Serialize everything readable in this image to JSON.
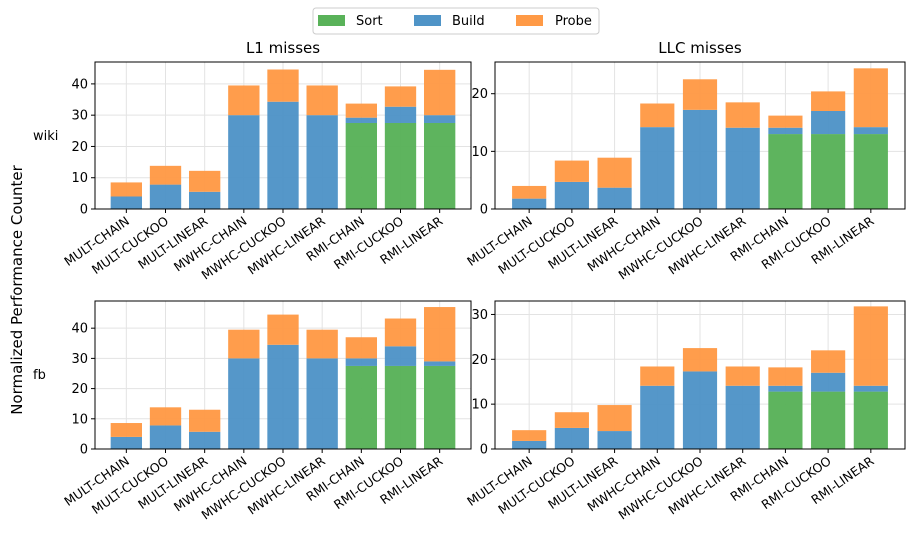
{
  "figure": {
    "ylabel": "Normalized Performance Counter",
    "legend": {
      "placement": "top-center",
      "entries": [
        {
          "name": "Sort",
          "color": "#59b259"
        },
        {
          "name": "Build",
          "color": "#4f94c7"
        },
        {
          "name": "Probe",
          "color": "#ff9a46"
        }
      ]
    }
  },
  "chart_data": [
    {
      "type": "bar",
      "stacked": true,
      "title": "L1 misses",
      "row_label": "wiki",
      "categories": [
        "MULT-CHAIN",
        "MULT-CUCKOO",
        "MULT-LINEAR",
        "MWHC-CHAIN",
        "MWHC-CUCKOO",
        "MWHC-LINEAR",
        "RMI-CHAIN",
        "RMI-CUCKOO",
        "RMI-LINEAR"
      ],
      "series": [
        {
          "name": "Sort",
          "values": [
            0,
            0,
            0,
            0,
            0,
            0,
            27.5,
            27.5,
            27.5
          ]
        },
        {
          "name": "Build",
          "values": [
            4,
            7.8,
            5.5,
            30,
            34.3,
            30,
            1.7,
            5.2,
            2.5
          ]
        },
        {
          "name": "Probe",
          "values": [
            4.5,
            6,
            6.7,
            9.5,
            10.3,
            9.5,
            4.5,
            6.5,
            14.5
          ]
        }
      ],
      "ylim": [
        0,
        47
      ],
      "yticks": [
        0,
        10,
        20,
        30,
        40
      ],
      "grid": true
    },
    {
      "type": "bar",
      "stacked": true,
      "title": "LLC misses",
      "categories": [
        "MULT-CHAIN",
        "MULT-CUCKOO",
        "MULT-LINEAR",
        "MWHC-CHAIN",
        "MWHC-CUCKOO",
        "MWHC-LINEAR",
        "RMI-CHAIN",
        "RMI-CUCKOO",
        "RMI-LINEAR"
      ],
      "series": [
        {
          "name": "Sort",
          "values": [
            0,
            0,
            0,
            0,
            0,
            0,
            13,
            13,
            13
          ]
        },
        {
          "name": "Build",
          "values": [
            1.8,
            4.7,
            3.7,
            14.2,
            17.2,
            14.1,
            1.1,
            4,
            1.2
          ]
        },
        {
          "name": "Probe",
          "values": [
            2.2,
            3.7,
            5.2,
            4.1,
            5.3,
            4.4,
            2.1,
            3.4,
            10.2
          ]
        }
      ],
      "ylim": [
        0,
        25.5
      ],
      "yticks": [
        0,
        10,
        20
      ],
      "grid": true
    },
    {
      "type": "bar",
      "stacked": true,
      "title": "",
      "row_label": "fb",
      "categories": [
        "MULT-CHAIN",
        "MULT-CUCKOO",
        "MULT-LINEAR",
        "MWHC-CHAIN",
        "MWHC-CUCKOO",
        "MWHC-LINEAR",
        "RMI-CHAIN",
        "RMI-CUCKOO",
        "RMI-LINEAR"
      ],
      "series": [
        {
          "name": "Sort",
          "values": [
            0,
            0,
            0,
            0,
            0,
            0,
            27.5,
            27.5,
            27.5
          ]
        },
        {
          "name": "Build",
          "values": [
            4,
            7.8,
            5.7,
            30,
            34.5,
            30,
            2.5,
            6.5,
            1.5
          ]
        },
        {
          "name": "Probe",
          "values": [
            4.6,
            6,
            7.3,
            9.5,
            10,
            9.5,
            7,
            9.2,
            18
          ]
        }
      ],
      "ylim": [
        0,
        49
      ],
      "yticks": [
        0,
        10,
        20,
        30,
        40
      ],
      "grid": true
    },
    {
      "type": "bar",
      "stacked": true,
      "title": "",
      "categories": [
        "MULT-CHAIN",
        "MULT-CUCKOO",
        "MULT-LINEAR",
        "MWHC-CHAIN",
        "MWHC-CUCKOO",
        "MWHC-LINEAR",
        "RMI-CHAIN",
        "RMI-CUCKOO",
        "RMI-LINEAR"
      ],
      "series": [
        {
          "name": "Sort",
          "values": [
            0,
            0,
            0,
            0,
            0,
            0,
            12.8,
            12.8,
            12.8
          ]
        },
        {
          "name": "Build",
          "values": [
            1.8,
            4.7,
            4,
            14.1,
            17.3,
            14.1,
            1.3,
            4.2,
            1.3
          ]
        },
        {
          "name": "Probe",
          "values": [
            2.4,
            3.5,
            5.8,
            4.3,
            5.2,
            4.3,
            4.1,
            5,
            17.7
          ]
        }
      ],
      "ylim": [
        0,
        33
      ],
      "yticks": [
        0,
        10,
        20,
        30
      ],
      "grid": true
    }
  ]
}
